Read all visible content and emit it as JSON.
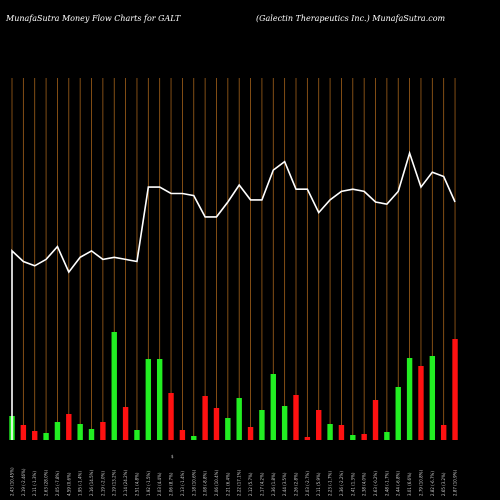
{
  "header": {
    "left": "MunafaSutra  Money Flow  Charts for GALT",
    "right": "(Galectin  Therapeutics Inc.) MunafaSutra.com"
  },
  "chart_data": {
    "type": "bar",
    "title": "MunafaSutra  Money Flow  Charts for GALT",
    "subtitle": "(Galectin  Therapeutics Inc.) MunafaSutra.com",
    "categories": [
      "2.43 (10.45%)",
      "2.19 (-2.46%)",
      "2.11 (-1.3%)",
      "2.63 (28.0%)",
      "2.05 (-7.8%)",
      "4.59 (0.6%)",
      "1.95 (-1.4%)",
      "2.16 (14.5%)",
      "2.19 (-2.0%)",
      "2.19 (13.2%)",
      "2.14 (24.2%)",
      "2.51 (4.8%)",
      "1.92 (-1.5%)",
      "2.03 (4.4%)",
      "2.06 (8.7%)",
      "2.13 (-1.4%)",
      "2.18 (10.6%)",
      "2.08 (-8.8%)",
      "2.06 (10.4%)",
      "2.21 (6.4%)",
      "2.22 (17.1%)",
      "2.12 (5.7%)",
      "2.17 (4.2%)",
      "2.36 (1.8%)",
      "2.44 (3.5%)",
      "2.26 (2.8%)",
      "2.03 (-2.7%)",
      "2.11 (5.9%)",
      "2.23 (-1.7%)",
      "2.36 (-2.2%)",
      "2.41 (1.3%)",
      "2.38 (4.0%)",
      "2.63 (-0.2%)",
      "2.48 (-1.7%)",
      "2.44 (-6.8%)",
      "3.01 (6.6%)",
      "2.79 (10.8%)",
      "2.82 (-6.7%)",
      "2.65 (3.2%)",
      "2.87 (10.9%)"
    ],
    "price": [
      2.19,
      2.14,
      2.12,
      2.15,
      2.21,
      2.09,
      2.16,
      2.19,
      2.15,
      2.16,
      2.15,
      2.14,
      2.49,
      2.49,
      2.46,
      2.46,
      2.45,
      2.35,
      2.35,
      2.42,
      2.5,
      2.43,
      2.43,
      2.57,
      2.61,
      2.48,
      2.48,
      2.37,
      2.43,
      2.47,
      2.48,
      2.47,
      2.42,
      2.41,
      2.47,
      2.65,
      2.49,
      2.56,
      2.54,
      2.42
    ],
    "flow": [
      {
        "value": 24,
        "dir": "up"
      },
      {
        "value": 15,
        "dir": "down"
      },
      {
        "value": 9,
        "dir": "down"
      },
      {
        "value": 7,
        "dir": "up"
      },
      {
        "value": 18,
        "dir": "up"
      },
      {
        "value": 26,
        "dir": "down"
      },
      {
        "value": 16,
        "dir": "up"
      },
      {
        "value": 11,
        "dir": "up"
      },
      {
        "value": 18,
        "dir": "down"
      },
      {
        "value": 108,
        "dir": "up"
      },
      {
        "value": 33,
        "dir": "down"
      },
      {
        "value": 10,
        "dir": "up"
      },
      {
        "value": 81,
        "dir": "up"
      },
      {
        "value": 81,
        "dir": "up"
      },
      {
        "value": 47,
        "dir": "down"
      },
      {
        "value": 10,
        "dir": "down"
      },
      {
        "value": 4,
        "dir": "up"
      },
      {
        "value": 44,
        "dir": "down"
      },
      {
        "value": 32,
        "dir": "down"
      },
      {
        "value": 22,
        "dir": "up"
      },
      {
        "value": 42,
        "dir": "up"
      },
      {
        "value": 13,
        "dir": "down"
      },
      {
        "value": 30,
        "dir": "up"
      },
      {
        "value": 66,
        "dir": "up"
      },
      {
        "value": 34,
        "dir": "up"
      },
      {
        "value": 45,
        "dir": "down"
      },
      {
        "value": 3,
        "dir": "down"
      },
      {
        "value": 30,
        "dir": "down"
      },
      {
        "value": 16,
        "dir": "up"
      },
      {
        "value": 15,
        "dir": "down"
      },
      {
        "value": 5,
        "dir": "up"
      },
      {
        "value": 6,
        "dir": "down"
      },
      {
        "value": 40,
        "dir": "down"
      },
      {
        "value": 8,
        "dir": "up"
      },
      {
        "value": 53,
        "dir": "up"
      },
      {
        "value": 82,
        "dir": "up"
      },
      {
        "value": 74,
        "dir": "down"
      },
      {
        "value": 84,
        "dir": "up"
      },
      {
        "value": 15,
        "dir": "down"
      },
      {
        "value": 101,
        "dir": "down"
      }
    ],
    "center_label": "$",
    "ylim_price": [
      1.3,
      2.9
    ],
    "ylim_flow": [
      0,
      110
    ],
    "colors": {
      "up": "#22ee22",
      "down": "#ff1111",
      "line": "#ffffff",
      "grid": "#a0601a",
      "bg": "#000000"
    },
    "grid": true
  }
}
